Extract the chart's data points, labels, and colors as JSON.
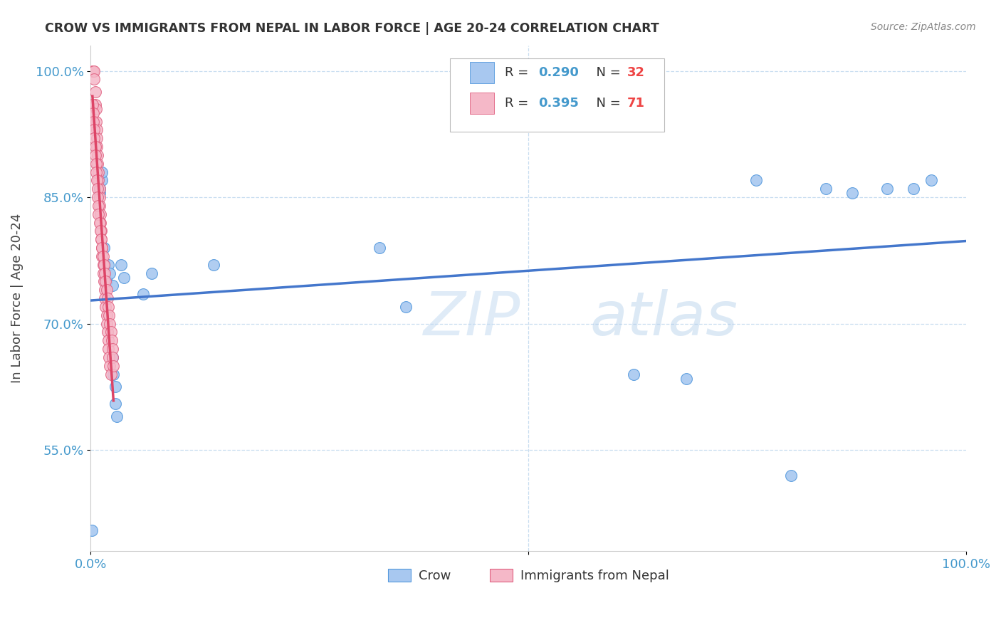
{
  "title": "CROW VS IMMIGRANTS FROM NEPAL IN LABOR FORCE | AGE 20-24 CORRELATION CHART",
  "source": "Source: ZipAtlas.com",
  "ylabel": "In Labor Force | Age 20-24",
  "xlim": [
    0.0,
    1.0
  ],
  "ylim": [
    0.43,
    1.03
  ],
  "yticks": [
    0.55,
    0.7,
    0.85,
    1.0
  ],
  "ytick_labels": [
    "55.0%",
    "70.0%",
    "85.0%",
    "100.0%"
  ],
  "xtick_positions": [
    0.0,
    0.5,
    1.0
  ],
  "xtick_labels": [
    "0.0%",
    "",
    "100.0%"
  ],
  "watermark_zip": "ZIP",
  "watermark_atlas": "atlas",
  "crow_color": "#a8c8f0",
  "crow_edge_color": "#5599dd",
  "nepal_color": "#f5b8c8",
  "nepal_edge_color": "#e06080",
  "crow_line_color": "#4477cc",
  "nepal_line_color": "#dd4466",
  "crow_points": [
    [
      0.001,
      0.455
    ],
    [
      0.01,
      0.855
    ],
    [
      0.01,
      0.86
    ],
    [
      0.013,
      0.87
    ],
    [
      0.013,
      0.88
    ],
    [
      0.015,
      0.79
    ],
    [
      0.016,
      0.77
    ],
    [
      0.018,
      0.75
    ],
    [
      0.02,
      0.77
    ],
    [
      0.022,
      0.76
    ],
    [
      0.025,
      0.745
    ],
    [
      0.025,
      0.66
    ],
    [
      0.026,
      0.64
    ],
    [
      0.028,
      0.625
    ],
    [
      0.028,
      0.605
    ],
    [
      0.03,
      0.59
    ],
    [
      0.035,
      0.77
    ],
    [
      0.038,
      0.755
    ],
    [
      0.06,
      0.735
    ],
    [
      0.07,
      0.76
    ],
    [
      0.14,
      0.77
    ],
    [
      0.33,
      0.79
    ],
    [
      0.36,
      0.72
    ],
    [
      0.62,
      0.64
    ],
    [
      0.68,
      0.635
    ],
    [
      0.76,
      0.87
    ],
    [
      0.8,
      0.52
    ],
    [
      0.84,
      0.86
    ],
    [
      0.87,
      0.855
    ],
    [
      0.91,
      0.86
    ],
    [
      0.94,
      0.86
    ],
    [
      0.96,
      0.87
    ]
  ],
  "nepal_points": [
    [
      0.002,
      1.0
    ],
    [
      0.003,
      1.0
    ],
    [
      0.004,
      1.0
    ],
    [
      0.004,
      0.99
    ],
    [
      0.005,
      0.975
    ],
    [
      0.005,
      0.96
    ],
    [
      0.006,
      0.955
    ],
    [
      0.006,
      0.94
    ],
    [
      0.007,
      0.93
    ],
    [
      0.007,
      0.92
    ],
    [
      0.007,
      0.91
    ],
    [
      0.008,
      0.9
    ],
    [
      0.008,
      0.89
    ],
    [
      0.009,
      0.88
    ],
    [
      0.009,
      0.87
    ],
    [
      0.01,
      0.86
    ],
    [
      0.01,
      0.85
    ],
    [
      0.01,
      0.84
    ],
    [
      0.011,
      0.83
    ],
    [
      0.011,
      0.82
    ],
    [
      0.012,
      0.81
    ],
    [
      0.012,
      0.8
    ],
    [
      0.013,
      0.79
    ],
    [
      0.013,
      0.78
    ],
    [
      0.014,
      0.77
    ],
    [
      0.014,
      0.76
    ],
    [
      0.015,
      0.75
    ],
    [
      0.016,
      0.74
    ],
    [
      0.016,
      0.73
    ],
    [
      0.017,
      0.72
    ],
    [
      0.018,
      0.71
    ],
    [
      0.018,
      0.7
    ],
    [
      0.019,
      0.69
    ],
    [
      0.02,
      0.68
    ],
    [
      0.02,
      0.67
    ],
    [
      0.021,
      0.66
    ],
    [
      0.022,
      0.65
    ],
    [
      0.023,
      0.64
    ],
    [
      0.002,
      0.96
    ],
    [
      0.003,
      0.95
    ],
    [
      0.003,
      0.94
    ],
    [
      0.004,
      0.93
    ],
    [
      0.004,
      0.92
    ],
    [
      0.005,
      0.91
    ],
    [
      0.005,
      0.9
    ],
    [
      0.006,
      0.89
    ],
    [
      0.006,
      0.88
    ],
    [
      0.007,
      0.87
    ],
    [
      0.008,
      0.86
    ],
    [
      0.008,
      0.85
    ],
    [
      0.009,
      0.84
    ],
    [
      0.009,
      0.83
    ],
    [
      0.01,
      0.82
    ],
    [
      0.011,
      0.81
    ],
    [
      0.012,
      0.8
    ],
    [
      0.013,
      0.79
    ],
    [
      0.014,
      0.78
    ],
    [
      0.015,
      0.77
    ],
    [
      0.016,
      0.76
    ],
    [
      0.017,
      0.75
    ],
    [
      0.018,
      0.74
    ],
    [
      0.019,
      0.73
    ],
    [
      0.02,
      0.72
    ],
    [
      0.021,
      0.71
    ],
    [
      0.022,
      0.7
    ],
    [
      0.023,
      0.69
    ],
    [
      0.024,
      0.68
    ],
    [
      0.025,
      0.67
    ],
    [
      0.025,
      0.66
    ],
    [
      0.026,
      0.65
    ]
  ],
  "grid_color": "#c8ddf0",
  "spine_color": "#cccccc",
  "tick_color": "#4499cc",
  "title_color": "#333333",
  "source_color": "#888888"
}
